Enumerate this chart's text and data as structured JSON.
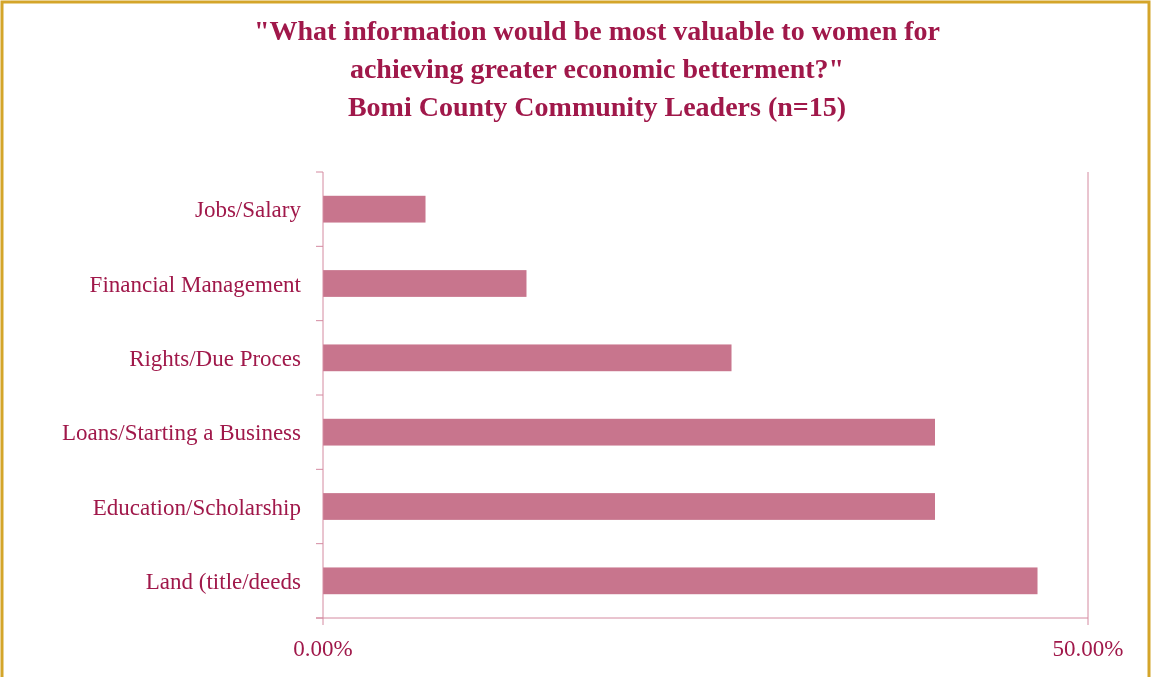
{
  "chart_data": {
    "type": "bar",
    "orientation": "horizontal",
    "title": "\"What information would be most valuable to women for achieving greater economic betterment?\"",
    "subtitle": "Bomi County Community Leaders (n=15)",
    "categories": [
      "Jobs/Salary",
      "Financial Management",
      "Rights/Due Proces",
      "Loans/Starting a Business",
      "Education/Scholarship",
      "Land (title/deeds"
    ],
    "values": [
      6.7,
      13.3,
      26.7,
      40,
      40,
      46.7
    ],
    "color": "#c8758d",
    "xlim": [
      0,
      50
    ],
    "xticks": [
      {
        "value": 0,
        "label": "0.00%"
      },
      {
        "value": 50,
        "label": "50.00%"
      }
    ]
  }
}
